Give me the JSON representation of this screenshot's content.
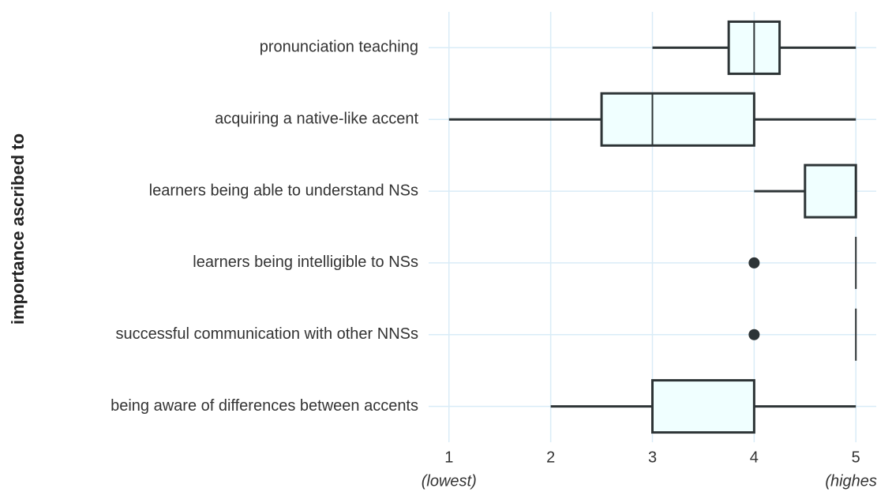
{
  "chart_data": {
    "type": "box",
    "y_label": "importance ascribed to",
    "categories": [
      "pronunciation teaching",
      "acquiring a native-like accent",
      "learners being able to understand NSs",
      "learners being intelligible to NSs",
      "successful communication with other NNSs",
      "being aware of differences between accents"
    ],
    "low": [
      3,
      1,
      4,
      5,
      5,
      2
    ],
    "q1": [
      3.75,
      2.5,
      4.5,
      5,
      5,
      3
    ],
    "median": [
      4,
      3,
      5,
      5,
      5,
      4
    ],
    "q3": [
      4.25,
      4,
      5,
      5,
      5,
      4
    ],
    "high": [
      5,
      5,
      5,
      5,
      5,
      5
    ],
    "outliers": [
      [],
      [],
      [],
      [
        4
      ],
      [
        4
      ],
      []
    ],
    "fill": "#f0ffff",
    "stroke": "#2d3436",
    "grid_color": "#d9ecf7",
    "xlim": [
      0.8,
      5.2
    ],
    "xticks": [
      1,
      2,
      3,
      4,
      5
    ],
    "annotations": [
      {
        "x": 1,
        "text": "(lowest)"
      },
      {
        "x": 5,
        "text": "(highest)"
      }
    ],
    "grid": true
  }
}
